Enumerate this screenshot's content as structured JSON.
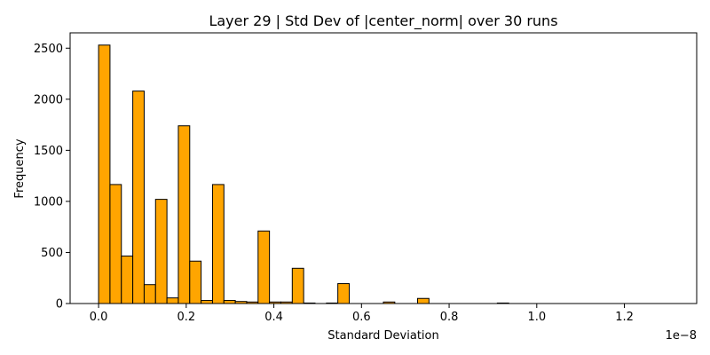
{
  "chart_data": {
    "type": "bar",
    "title": "Layer 29 | Std Dev of |center_norm| over 30 runs",
    "xlabel": "Standard Deviation",
    "ylabel": "Frequency",
    "x_offset_text": "1e−8",
    "xlim": [
      -0.065,
      1.365
    ],
    "ylim": [
      0,
      2650
    ],
    "bin_width": 0.026,
    "bar_color": "#ffa500",
    "edge_color": "#000000",
    "bin_left_edges": [
      0.0,
      0.026,
      0.052,
      0.078,
      0.104,
      0.13,
      0.156,
      0.182,
      0.208,
      0.234,
      0.26,
      0.286,
      0.312,
      0.338,
      0.364,
      0.39,
      0.416,
      0.442,
      0.468,
      0.494,
      0.52,
      0.546,
      0.572,
      0.598,
      0.624,
      0.65,
      0.676,
      0.702,
      0.728,
      0.754,
      0.78,
      0.806,
      0.832,
      0.858,
      0.884,
      0.91,
      0.936,
      0.962,
      0.988,
      1.014,
      1.04,
      1.066,
      1.092,
      1.118,
      1.144,
      1.17,
      1.196,
      1.222,
      1.248,
      1.274
    ],
    "values": [
      2530,
      1165,
      465,
      2080,
      185,
      1020,
      55,
      1740,
      415,
      30,
      1165,
      30,
      20,
      15,
      710,
      15,
      15,
      345,
      5,
      0,
      5,
      195,
      0,
      0,
      0,
      15,
      0,
      0,
      50,
      0,
      0,
      0,
      0,
      0,
      0,
      5,
      0,
      0,
      0,
      0,
      0,
      0,
      0,
      0,
      0,
      0,
      0,
      0,
      0,
      0
    ],
    "x_ticks": [
      0.0,
      0.2,
      0.4,
      0.6,
      0.8,
      1.0,
      1.2
    ],
    "x_tick_labels": [
      "0.0",
      "0.2",
      "0.4",
      "0.6",
      "0.8",
      "1.0",
      "1.2"
    ],
    "y_ticks": [
      0,
      500,
      1000,
      1500,
      2000,
      2500
    ],
    "y_tick_labels": [
      "0",
      "500",
      "1000",
      "1500",
      "2000",
      "2500"
    ],
    "grid": false
  }
}
